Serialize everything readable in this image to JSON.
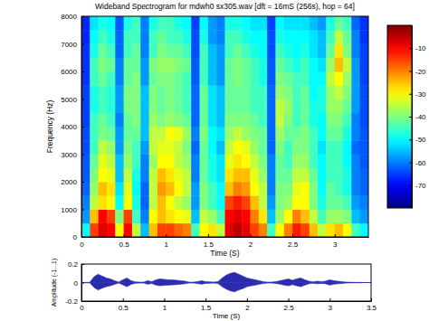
{
  "chart_data": [
    {
      "type": "heatmap",
      "title": "Wideband Spectrogram for mdwh0 sx305.wav [dft = 16mS (256s), hop = 64]",
      "x_label": "Time (S)",
      "y_label": "Frequency (Hz)",
      "xlim": [
        0,
        3.4
      ],
      "ylim": [
        0,
        8000
      ],
      "xticks": [
        0,
        0.5,
        1,
        1.5,
        2,
        2.5,
        3
      ],
      "yticks": [
        0,
        1000,
        2000,
        3000,
        4000,
        5000,
        6000,
        7000,
        8000
      ],
      "x_bins": [
        0,
        0.1,
        0.2,
        0.3,
        0.4,
        0.5,
        0.6,
        0.7,
        0.8,
        0.9,
        1.0,
        1.1,
        1.2,
        1.3,
        1.4,
        1.5,
        1.6,
        1.7,
        1.8,
        1.9,
        2.0,
        2.1,
        2.2,
        2.3,
        2.4,
        2.5,
        2.6,
        2.7,
        2.8,
        2.9,
        3.0,
        3.1,
        3.2,
        3.3,
        3.4
      ],
      "y_bins": [
        0,
        500,
        1000,
        1500,
        2000,
        2500,
        3000,
        3500,
        4000,
        4500,
        5000,
        5500,
        6000,
        6500,
        7000,
        7500,
        8000
      ],
      "cells": [
        [
          -50,
          -58,
          -60,
          -62,
          -63,
          -63,
          -64,
          -64,
          -65,
          -65,
          -65,
          -66,
          -66,
          -66,
          -67,
          -67
        ],
        [
          -15,
          -25,
          -35,
          -38,
          -40,
          -42,
          -45,
          -45,
          -45,
          -48,
          -48,
          -45,
          -45,
          -48,
          -50,
          -52
        ],
        [
          -8,
          -10,
          -28,
          -25,
          -30,
          -32,
          -35,
          -40,
          -42,
          -45,
          -45,
          -42,
          -40,
          -42,
          -45,
          -48
        ],
        [
          -10,
          -15,
          -30,
          -28,
          -32,
          -35,
          -38,
          -42,
          -45,
          -47,
          -47,
          -45,
          -42,
          -45,
          -48,
          -50
        ],
        [
          -30,
          -40,
          -50,
          -52,
          -55,
          -55,
          -58,
          -58,
          -60,
          -58,
          -58,
          -60,
          -60,
          -62,
          -62,
          -63
        ],
        [
          -10,
          -15,
          -30,
          -32,
          -35,
          -38,
          -40,
          -42,
          -42,
          -40,
          -40,
          -42,
          -42,
          -45,
          -45,
          -48
        ],
        [
          -35,
          -45,
          -48,
          -50,
          -48,
          -45,
          -45,
          -42,
          -40,
          -40,
          -40,
          -40,
          -42,
          -42,
          -45,
          -45
        ],
        [
          -55,
          -60,
          -62,
          -62,
          -60,
          -60,
          -58,
          -55,
          -55,
          -55,
          -55,
          -58,
          -58,
          -60,
          -60,
          -60
        ],
        [
          -25,
          -30,
          -35,
          -35,
          -35,
          -38,
          -35,
          -35,
          -38,
          -40,
          -40,
          -42,
          -40,
          -45,
          -45,
          -48
        ],
        [
          -15,
          -25,
          -25,
          -22,
          -25,
          -30,
          -32,
          -35,
          -40,
          -42,
          -42,
          -40,
          -38,
          -40,
          -42,
          -45
        ],
        [
          -15,
          -28,
          -30,
          -25,
          -28,
          -30,
          -32,
          -30,
          -38,
          -40,
          -40,
          -40,
          -38,
          -42,
          -45,
          -45
        ],
        [
          -18,
          -30,
          -35,
          -30,
          -32,
          -35,
          -35,
          -32,
          -40,
          -42,
          -42,
          -42,
          -40,
          -42,
          -45,
          -48
        ],
        [
          -20,
          -32,
          -38,
          -35,
          -35,
          -38,
          -40,
          -38,
          -42,
          -45,
          -45,
          -45,
          -42,
          -45,
          -48,
          -50
        ],
        [
          -45,
          -55,
          -58,
          -58,
          -60,
          -60,
          -62,
          -60,
          -62,
          -62,
          -62,
          -63,
          -63,
          -64,
          -64,
          -65
        ],
        [
          -30,
          -35,
          -40,
          -40,
          -42,
          -42,
          -42,
          -40,
          -42,
          -42,
          -42,
          -45,
          -45,
          -45,
          -48,
          -50
        ],
        [
          -28,
          -38,
          -45,
          -45,
          -48,
          -48,
          -50,
          -50,
          -52,
          -52,
          -52,
          -55,
          -55,
          -55,
          -58,
          -58
        ],
        [
          -35,
          -45,
          -50,
          -50,
          -52,
          -52,
          -55,
          -52,
          -55,
          -55,
          -55,
          -58,
          -58,
          -58,
          -60,
          -60
        ],
        [
          -8,
          -10,
          -15,
          -25,
          -28,
          -32,
          -35,
          -38,
          -40,
          -42,
          -42,
          -42,
          -42,
          -45,
          -45,
          -48
        ],
        [
          -5,
          -8,
          -12,
          -20,
          -25,
          -28,
          -30,
          -35,
          -40,
          -42,
          -42,
          -40,
          -40,
          -42,
          -45,
          -48
        ],
        [
          -8,
          -10,
          -15,
          -22,
          -25,
          -30,
          -32,
          -38,
          -40,
          -42,
          -42,
          -42,
          -42,
          -45,
          -48,
          -50
        ],
        [
          -15,
          -20,
          -25,
          -30,
          -32,
          -35,
          -38,
          -40,
          -42,
          -45,
          -45,
          -45,
          -45,
          -48,
          -50,
          -52
        ],
        [
          -20,
          -28,
          -35,
          -35,
          -38,
          -40,
          -42,
          -42,
          -45,
          -45,
          -45,
          -48,
          -48,
          -50,
          -50,
          -52
        ],
        [
          -45,
          -55,
          -58,
          -60,
          -60,
          -60,
          -62,
          -62,
          -62,
          -62,
          -62,
          -63,
          -63,
          -64,
          -64,
          -65
        ],
        [
          -30,
          -38,
          -40,
          -40,
          -42,
          -42,
          -40,
          -38,
          -35,
          -35,
          -38,
          -40,
          -42,
          -45,
          -48,
          -50
        ],
        [
          -20,
          -30,
          -38,
          -40,
          -42,
          -45,
          -45,
          -42,
          -40,
          -38,
          -40,
          -42,
          -45,
          -48,
          -50,
          -52
        ],
        [
          -12,
          -20,
          -30,
          -32,
          -35,
          -38,
          -40,
          -42,
          -45,
          -45,
          -45,
          -45,
          -48,
          -50,
          -50,
          -52
        ],
        [
          -15,
          -25,
          -30,
          -30,
          -35,
          -38,
          -40,
          -40,
          -42,
          -42,
          -42,
          -45,
          -45,
          -48,
          -50,
          -52
        ],
        [
          -25,
          -35,
          -40,
          -40,
          -42,
          -45,
          -45,
          -45,
          -48,
          -48,
          -50,
          -50,
          -50,
          -52,
          -52,
          -55
        ],
        [
          -35,
          -45,
          -48,
          -50,
          -50,
          -50,
          -52,
          -50,
          -50,
          -48,
          -48,
          -50,
          -52,
          -55,
          -55,
          -58
        ],
        [
          -28,
          -38,
          -42,
          -42,
          -45,
          -45,
          -45,
          -42,
          -40,
          -38,
          -38,
          -35,
          -38,
          -42,
          -45,
          -48
        ],
        [
          -25,
          -38,
          -42,
          -45,
          -45,
          -45,
          -45,
          -42,
          -40,
          -38,
          -35,
          -30,
          -25,
          -28,
          -35,
          -42
        ],
        [
          -30,
          -40,
          -45,
          -48,
          -48,
          -50,
          -50,
          -48,
          -45,
          -42,
          -40,
          -38,
          -35,
          -40,
          -42,
          -45
        ],
        [
          -45,
          -55,
          -58,
          -60,
          -60,
          -60,
          -62,
          -60,
          -60,
          -58,
          -58,
          -58,
          -58,
          -60,
          -60,
          -62
        ],
        [
          -50,
          -58,
          -60,
          -62,
          -62,
          -63,
          -63,
          -63,
          -64,
          -64,
          -64,
          -65,
          -65,
          -65,
          -66,
          -66
        ]
      ],
      "color_range": [
        -80,
        0
      ],
      "color_ticks": [
        -70,
        -60,
        -50,
        -40,
        -30,
        -20,
        -10
      ]
    },
    {
      "type": "area",
      "x_label": "Time (S)",
      "y_label": "Amplitude (-1...1)",
      "xlim": [
        0,
        3.5
      ],
      "ylim": [
        -0.2,
        0.2
      ],
      "xticks": [
        0,
        0.5,
        1,
        1.5,
        2,
        2.5,
        3,
        3.5
      ],
      "yticks": [
        -0.2,
        0,
        0.2
      ],
      "x": [
        0,
        0.05,
        0.1,
        0.15,
        0.2,
        0.25,
        0.3,
        0.35,
        0.4,
        0.45,
        0.5,
        0.55,
        0.6,
        0.65,
        0.7,
        0.75,
        0.8,
        0.85,
        0.9,
        0.95,
        1.0,
        1.05,
        1.1,
        1.15,
        1.2,
        1.25,
        1.3,
        1.35,
        1.4,
        1.45,
        1.5,
        1.55,
        1.6,
        1.65,
        1.7,
        1.75,
        1.8,
        1.85,
        1.9,
        1.95,
        2.0,
        2.05,
        2.1,
        2.15,
        2.2,
        2.25,
        2.3,
        2.35,
        2.4,
        2.45,
        2.5,
        2.55,
        2.6,
        2.65,
        2.7,
        2.75,
        2.8,
        2.85,
        2.9,
        2.95,
        3.0,
        3.05,
        3.1,
        3.15,
        3.2,
        3.25,
        3.3,
        3.35,
        3.4,
        3.45,
        3.5
      ],
      "series": [
        {
          "color": "#2b2bb0",
          "values": [
            0,
            0.002,
            0.003,
            0.06,
            0.09,
            0.07,
            0.05,
            0.04,
            0.02,
            0.005,
            0.03,
            0.05,
            0.02,
            0.008,
            0.005,
            0.005,
            0.02,
            0.01,
            0.03,
            0.04,
            0.035,
            0.03,
            0.03,
            0.025,
            0.02,
            0.015,
            0.005,
            0.004,
            0.01,
            0.02,
            0.01,
            0.008,
            0.006,
            0.01,
            0.05,
            0.08,
            0.1,
            0.11,
            0.09,
            0.07,
            0.05,
            0.04,
            0.03,
            0.02,
            0.01,
            0.004,
            0.006,
            0.01,
            0.02,
            0.03,
            0.04,
            0.025,
            0.04,
            0.05,
            0.03,
            0.015,
            0.008,
            0.015,
            0.01,
            0.015,
            0.03,
            0.02,
            0.015,
            0.01,
            0.005,
            0.003,
            0.002,
            0.002,
            0.001,
            0,
            0
          ]
        },
        {
          "color": "#2b2bb0",
          "values": [
            0,
            -0.002,
            -0.003,
            -0.05,
            -0.08,
            -0.06,
            -0.045,
            -0.035,
            -0.02,
            -0.005,
            -0.025,
            -0.045,
            -0.02,
            -0.008,
            -0.005,
            -0.005,
            -0.018,
            -0.01,
            -0.028,
            -0.035,
            -0.03,
            -0.028,
            -0.025,
            -0.022,
            -0.018,
            -0.013,
            -0.005,
            -0.004,
            -0.01,
            -0.018,
            -0.01,
            -0.008,
            -0.006,
            -0.01,
            -0.045,
            -0.07,
            -0.09,
            -0.1,
            -0.08,
            -0.065,
            -0.045,
            -0.035,
            -0.028,
            -0.018,
            -0.01,
            -0.004,
            -0.006,
            -0.01,
            -0.018,
            -0.028,
            -0.035,
            -0.022,
            -0.035,
            -0.045,
            -0.028,
            -0.013,
            -0.008,
            -0.013,
            -0.01,
            -0.013,
            -0.028,
            -0.018,
            -0.013,
            -0.01,
            -0.005,
            -0.003,
            -0.002,
            -0.002,
            -0.001,
            0,
            0
          ]
        }
      ]
    }
  ]
}
